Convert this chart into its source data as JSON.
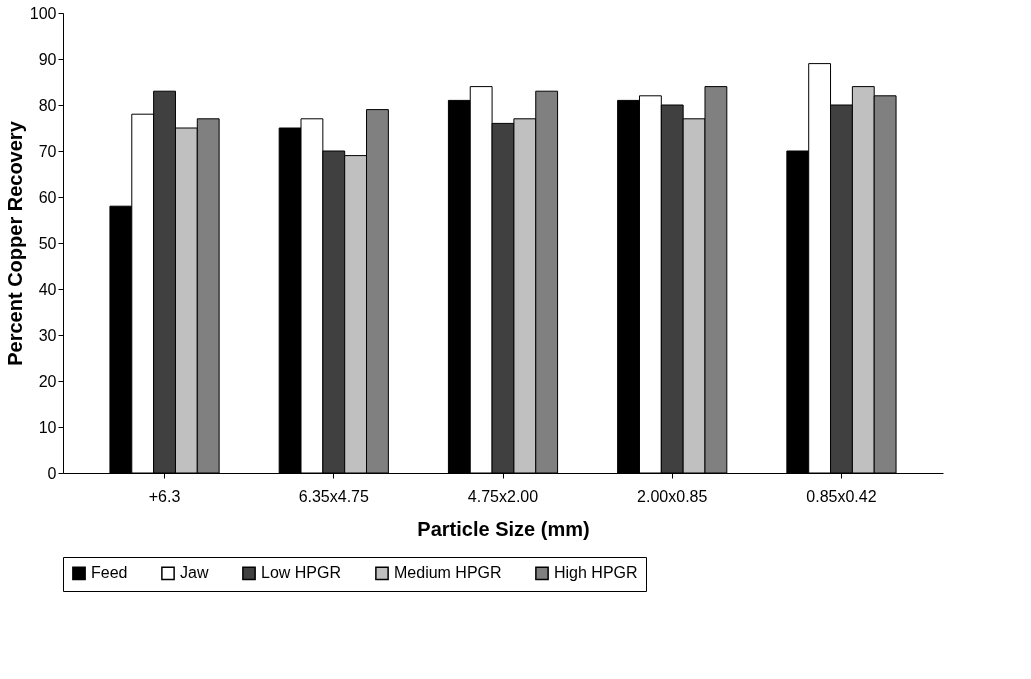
{
  "chart_data": {
    "type": "bar",
    "xlabel": "Particle Size (mm)",
    "ylabel": "Percent Copper Recovery",
    "categories": [
      "+6.3",
      "6.35x4.75",
      "4.75x2.00",
      "2.00x0.85",
      "0.85x0.42"
    ],
    "series": [
      {
        "name": "Feed",
        "color": "#000000",
        "values": [
          58,
          75,
          81,
          81,
          70
        ]
      },
      {
        "name": "Jaw",
        "color": "#ffffff",
        "values": [
          78,
          77,
          84,
          82,
          89
        ]
      },
      {
        "name": "Low HPGR",
        "color": "#404040",
        "values": [
          83,
          70,
          76,
          80,
          80
        ]
      },
      {
        "name": "Medium HPGR",
        "color": "#c0c0c0",
        "values": [
          75,
          69,
          77,
          77,
          84
        ]
      },
      {
        "name": "High HPGR",
        "color": "#808080",
        "values": [
          77,
          79,
          83,
          84,
          82
        ]
      }
    ],
    "ylim": [
      0,
      100
    ],
    "yticks": [
      0,
      10,
      20,
      30,
      40,
      50,
      60,
      70,
      80,
      90,
      100
    ],
    "grid": false,
    "legend": "bottom"
  }
}
